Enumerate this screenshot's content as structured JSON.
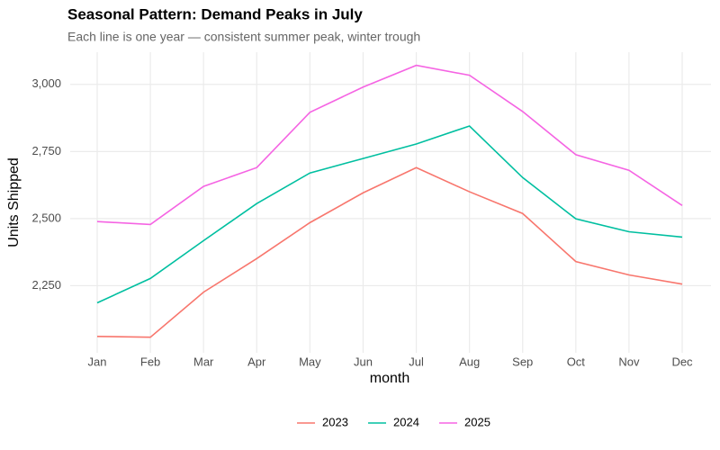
{
  "chart_data": {
    "type": "line",
    "title": "Seasonal Pattern: Demand Peaks in July",
    "subtitle": "Each line is one year — consistent summer peak, winter trough",
    "x_label": "month",
    "y_label": "Units Shipped",
    "categories": [
      "Jan",
      "Feb",
      "Mar",
      "Apr",
      "May",
      "Jun",
      "Jul",
      "Aug",
      "Sep",
      "Oct",
      "Nov",
      "Dec"
    ],
    "series": [
      {
        "name": "2023",
        "color": "#f8766d",
        "values": [
          2061,
          2058,
          2226,
          2351,
          2485,
          2596,
          2690,
          2600,
          2519,
          2340,
          2290,
          2256
        ]
      },
      {
        "name": "2024",
        "color": "#00bfa0",
        "values": [
          2186,
          2277,
          2418,
          2556,
          2670,
          2724,
          2778,
          2845,
          2653,
          2499,
          2451,
          2431
        ]
      },
      {
        "name": "2025",
        "color": "#f564e3",
        "values": [
          2489,
          2478,
          2620,
          2690,
          2896,
          2990,
          3071,
          3034,
          2899,
          2738,
          2680,
          2549
        ]
      }
    ],
    "ylim": [
      2000,
      3120
    ],
    "yticks": [
      {
        "value": 2250,
        "label": "2,250"
      },
      {
        "value": 2500,
        "label": "2,500"
      },
      {
        "value": 2750,
        "label": "2,750"
      },
      {
        "value": 3000,
        "label": "3,000"
      }
    ],
    "grid": true,
    "legend": "bottom"
  }
}
